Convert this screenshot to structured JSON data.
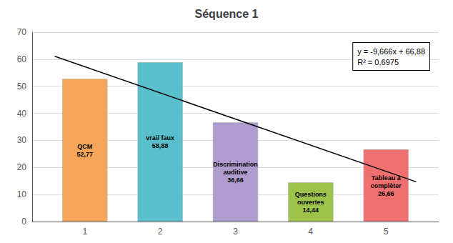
{
  "chart_data": {
    "type": "bar",
    "title": "Séquence 1",
    "series": [
      {
        "type": "bar",
        "x": [
          1,
          2,
          3,
          4,
          5
        ],
        "values": [
          52.77,
          58.88,
          36.66,
          14.44,
          26.66
        ],
        "colors": [
          "#f5a55a",
          "#5abfcc",
          "#b09cce",
          "#9dc34a",
          "#f07070"
        ],
        "value_labels": [
          "QCM\n52,77",
          "vrai/ faux\n58,88",
          "Discrimination\nauditive\n36,66",
          "Questions\nouvertes\n14,44",
          "Tableau à\ncomplèter\n26,66"
        ]
      },
      {
        "type": "line",
        "color": "#000000",
        "x": [
          0.6,
          5.4
        ],
        "values": [
          61.0804,
          14.6836
        ]
      }
    ],
    "annotations": [
      "y = -9,666x + 66,88",
      "R² = 0,6975"
    ],
    "xlim": [
      0.3,
      5.7
    ],
    "xticks": [
      1,
      2,
      3,
      4,
      5
    ],
    "ylim": [
      0,
      70
    ],
    "yticks": [
      0,
      10,
      20,
      30,
      40,
      50,
      60,
      70
    ],
    "grid": true
  }
}
